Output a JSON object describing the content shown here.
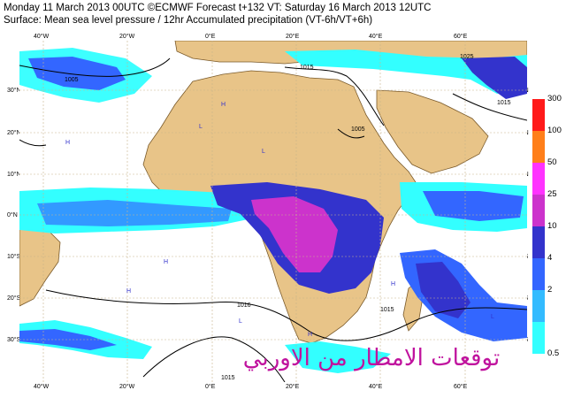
{
  "header": {
    "line1": "Monday 11 March 2013 00UTC ©ECMWF Forecast t+132 VT: Saturday 16 March 2013 12UTC",
    "line2": "Surface: Mean sea level pressure / 12hr Accumulated precipitation (VT-6h/VT+6h)"
  },
  "longitude_ticks": [
    "40°W",
    "20°W",
    "0°E",
    "20°E",
    "40°E",
    "60°E"
  ],
  "latitude_ticks": [
    "30°N",
    "20°N",
    "10°N",
    "0°N",
    "10°S",
    "20°S",
    "30°S"
  ],
  "isobar_labels": [
    "1005",
    "1015",
    "1015",
    "1005",
    "1016",
    "1015",
    "1025",
    "1015"
  ],
  "pressure_centres": [
    "H",
    "L",
    "H",
    "L",
    "H",
    "H",
    "L",
    "H",
    "L",
    "H"
  ],
  "legend": {
    "levels": [
      "300",
      "100",
      "50",
      "25",
      "10",
      "4",
      "2",
      "0.5"
    ],
    "colors": [
      "#ff1a1a",
      "#ff7f1a",
      "#ff33ff",
      "#cc33cc",
      "#3333cc",
      "#3366ff",
      "#33bbff",
      "#33ffff"
    ]
  },
  "watermark": "توقعات الامطار من الاوربي",
  "colors": {
    "land": "#e8c488",
    "sea": "#ffffff",
    "precip_light": "#33ffff",
    "precip_mid": "#3399ff",
    "precip_heavy": "#3333cc",
    "precip_extreme": "#cc33cc"
  }
}
